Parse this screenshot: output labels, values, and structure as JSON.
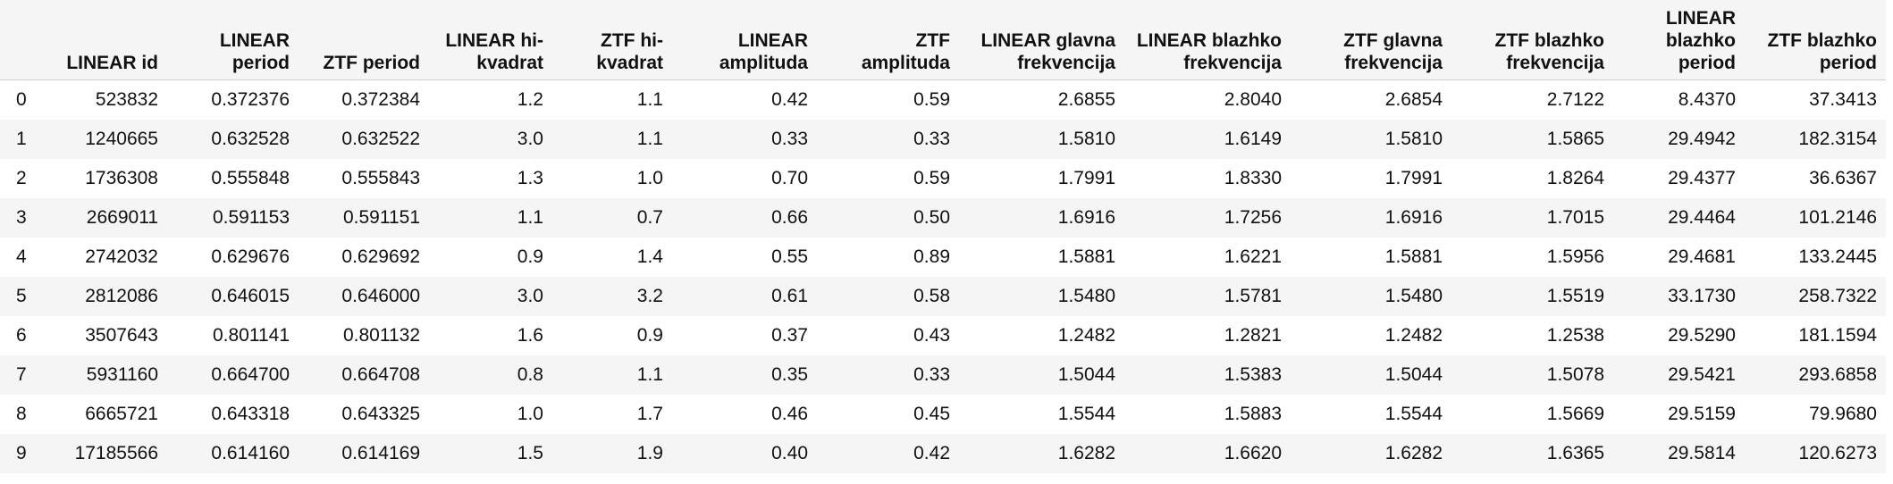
{
  "table": {
    "index_header": "",
    "columns": [
      "LINEAR id",
      "LINEAR period",
      "ZTF period",
      "LINEAR hi-kvadrat",
      "ZTF hi-kvadrat",
      "LINEAR amplituda",
      "ZTF amplituda",
      "LINEAR glavna frekvencija",
      "LINEAR blazhko frekvencija",
      "ZTF glavna frekvencija",
      "ZTF blazhko frekvencija",
      "LINEAR blazhko period",
      "ZTF blazhko period"
    ],
    "rows": [
      {
        "index": "0",
        "cells": [
          "523832",
          "0.372376",
          "0.372384",
          "1.2",
          "1.1",
          "0.42",
          "0.59",
          "2.6855",
          "2.8040",
          "2.6854",
          "2.7122",
          "8.4370",
          "37.3413"
        ]
      },
      {
        "index": "1",
        "cells": [
          "1240665",
          "0.632528",
          "0.632522",
          "3.0",
          "1.1",
          "0.33",
          "0.33",
          "1.5810",
          "1.6149",
          "1.5810",
          "1.5865",
          "29.4942",
          "182.3154"
        ]
      },
      {
        "index": "2",
        "cells": [
          "1736308",
          "0.555848",
          "0.555843",
          "1.3",
          "1.0",
          "0.70",
          "0.59",
          "1.7991",
          "1.8330",
          "1.7991",
          "1.8264",
          "29.4377",
          "36.6367"
        ]
      },
      {
        "index": "3",
        "cells": [
          "2669011",
          "0.591153",
          "0.591151",
          "1.1",
          "0.7",
          "0.66",
          "0.50",
          "1.6916",
          "1.7256",
          "1.6916",
          "1.7015",
          "29.4464",
          "101.2146"
        ]
      },
      {
        "index": "4",
        "cells": [
          "2742032",
          "0.629676",
          "0.629692",
          "0.9",
          "1.4",
          "0.55",
          "0.89",
          "1.5881",
          "1.6221",
          "1.5881",
          "1.5956",
          "29.4681",
          "133.2445"
        ]
      },
      {
        "index": "5",
        "cells": [
          "2812086",
          "0.646015",
          "0.646000",
          "3.0",
          "3.2",
          "0.61",
          "0.58",
          "1.5480",
          "1.5781",
          "1.5480",
          "1.5519",
          "33.1730",
          "258.7322"
        ]
      },
      {
        "index": "6",
        "cells": [
          "3507643",
          "0.801141",
          "0.801132",
          "1.6",
          "0.9",
          "0.37",
          "0.43",
          "1.2482",
          "1.2821",
          "1.2482",
          "1.2538",
          "29.5290",
          "181.1594"
        ]
      },
      {
        "index": "7",
        "cells": [
          "5931160",
          "0.664700",
          "0.664708",
          "0.8",
          "1.1",
          "0.35",
          "0.33",
          "1.5044",
          "1.5383",
          "1.5044",
          "1.5078",
          "29.5421",
          "293.6858"
        ]
      },
      {
        "index": "8",
        "cells": [
          "6665721",
          "0.643318",
          "0.643325",
          "1.0",
          "1.7",
          "0.46",
          "0.45",
          "1.5544",
          "1.5883",
          "1.5544",
          "1.5669",
          "29.5159",
          "79.9680"
        ]
      },
      {
        "index": "9",
        "cells": [
          "17185566",
          "0.614160",
          "0.614169",
          "1.5",
          "1.9",
          "0.40",
          "0.42",
          "1.6282",
          "1.6620",
          "1.6282",
          "1.6365",
          "29.5814",
          "120.6273"
        ]
      }
    ]
  }
}
